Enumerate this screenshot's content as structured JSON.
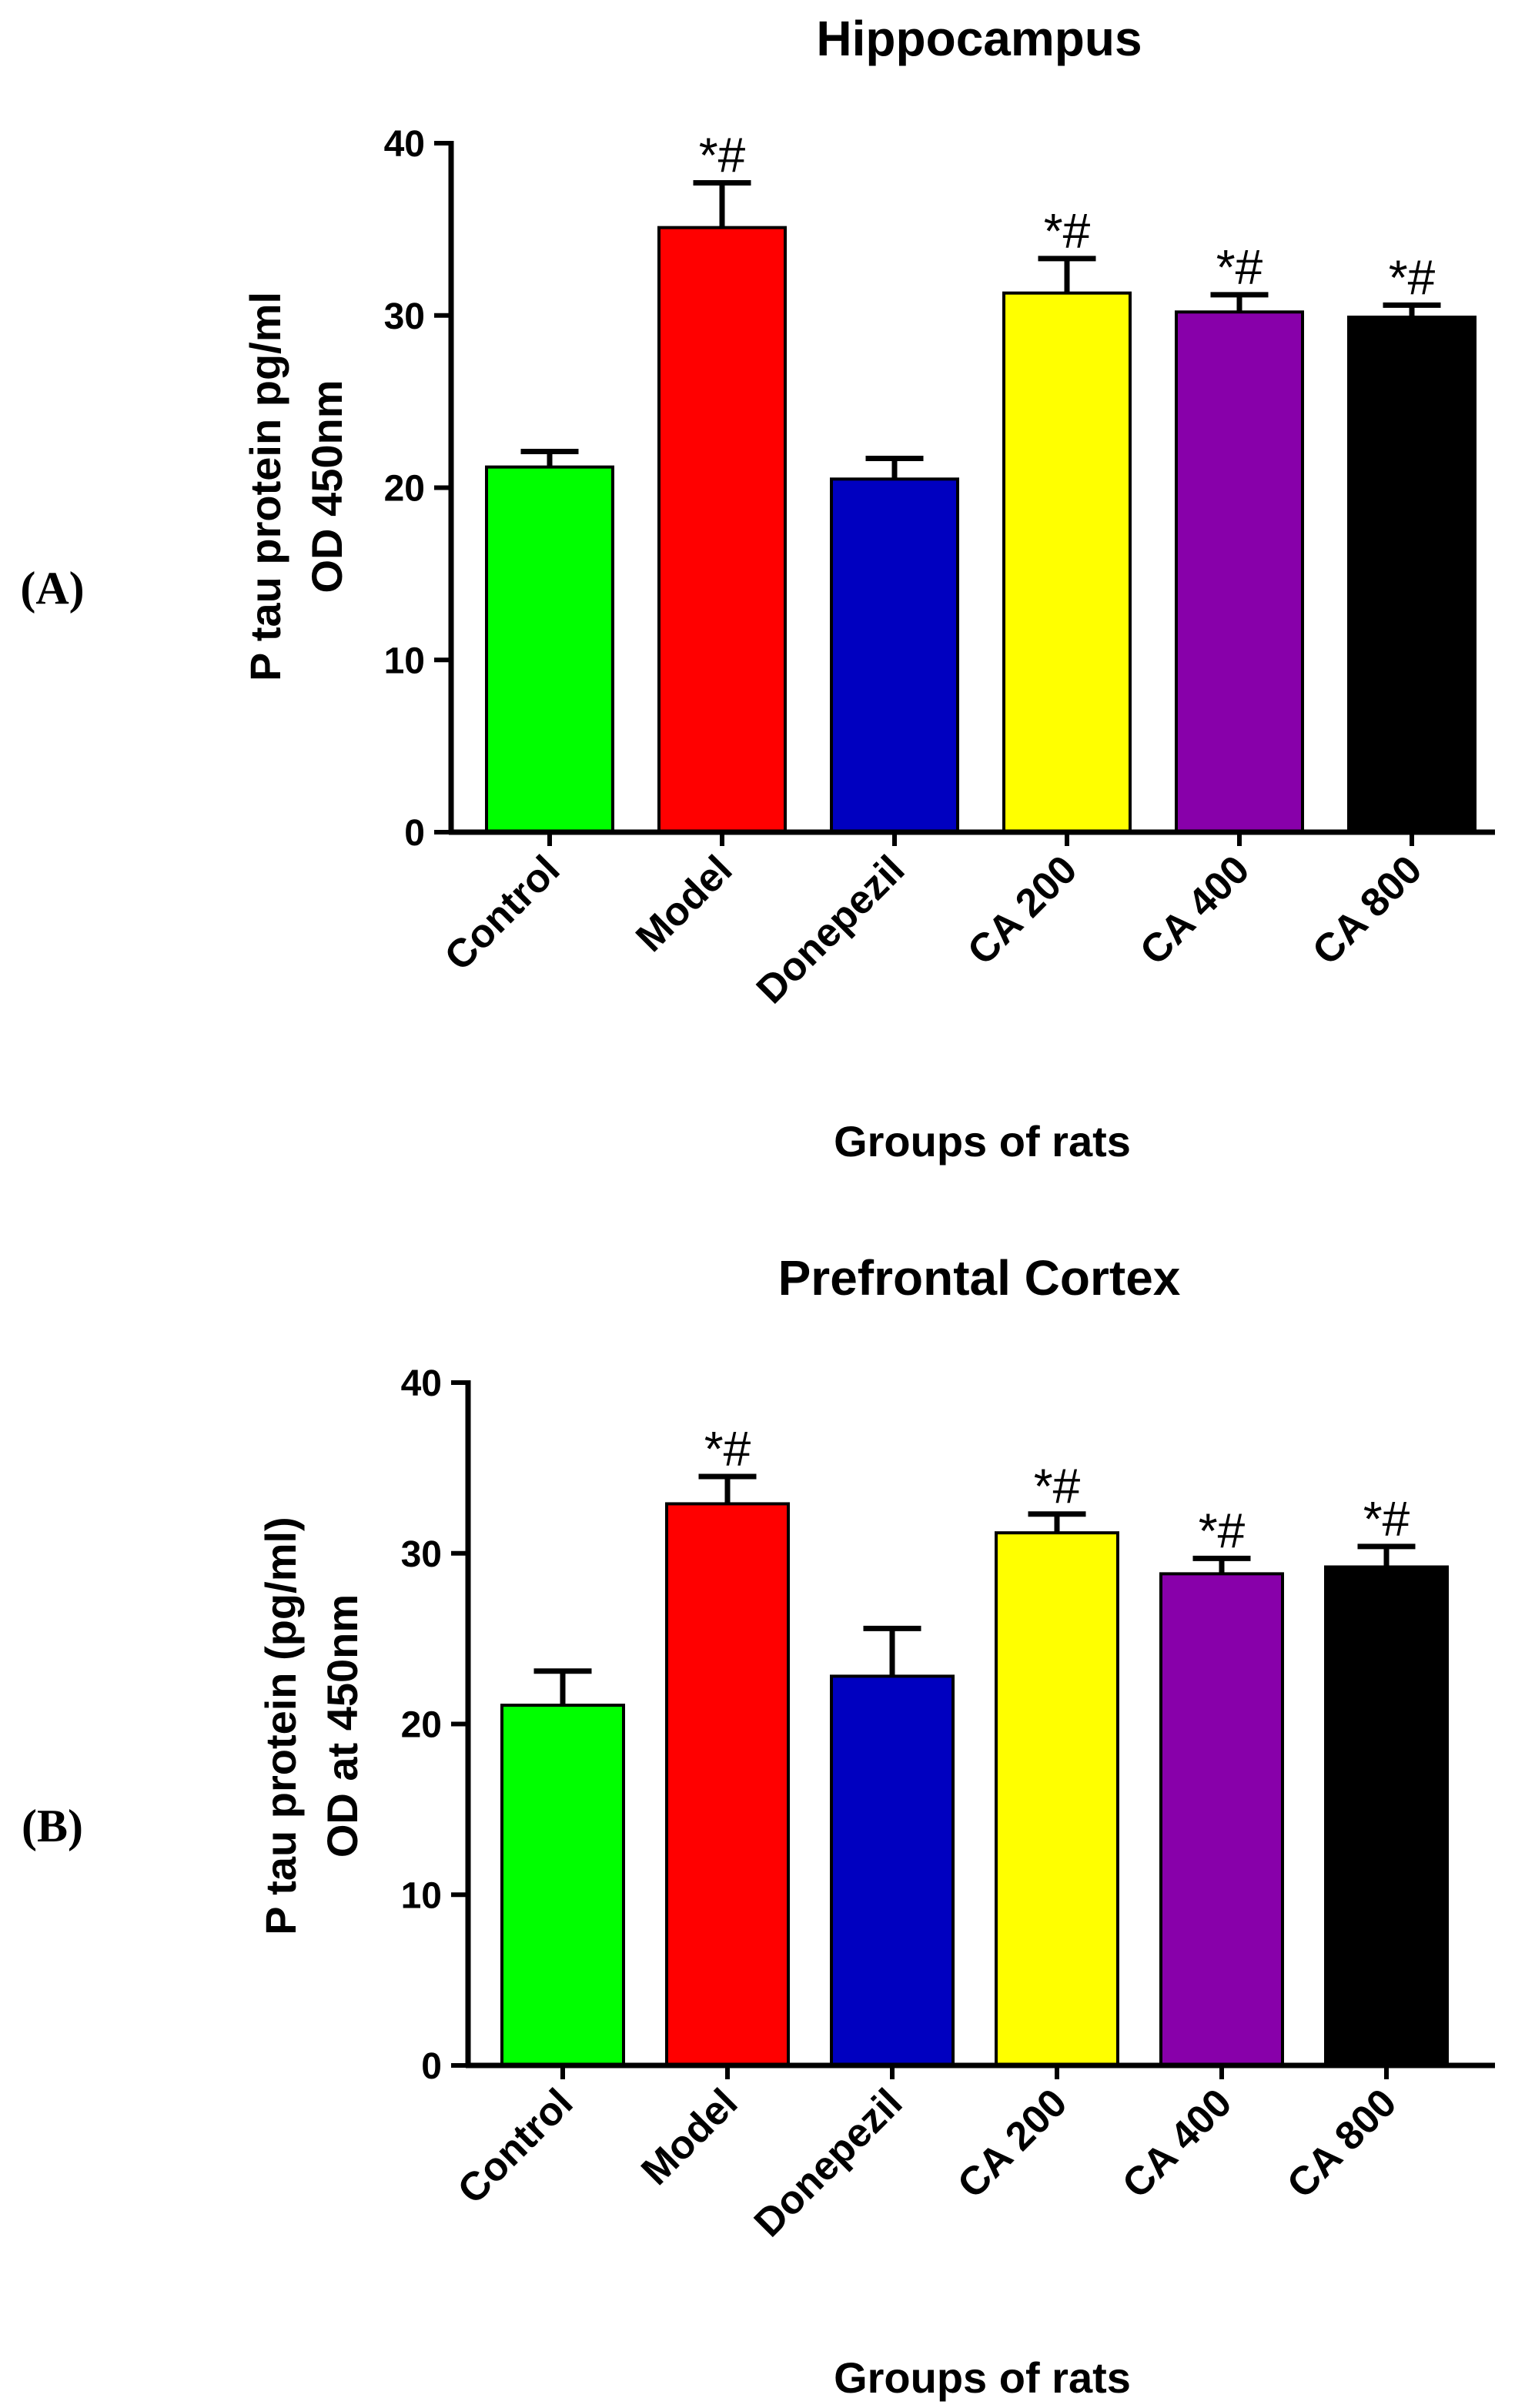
{
  "chart_data": [
    {
      "panel_label": "(A)",
      "type": "bar",
      "title": "Hippocampus",
      "xlabel": "Groups of rats",
      "ylabel_lines": [
        "P tau protein pg/ml",
        "OD 450nm"
      ],
      "ylim": [
        0,
        40
      ],
      "yticks": [
        0,
        10,
        20,
        30,
        40
      ],
      "categories": [
        "Control",
        "Model",
        "Donepezil",
        "CA 200",
        "CA 400",
        "CA 800"
      ],
      "values": [
        21.2,
        35.1,
        20.5,
        31.3,
        30.2,
        29.9
      ],
      "errors": [
        0.9,
        2.6,
        1.2,
        2.0,
        1.0,
        0.7
      ],
      "colors": [
        "#00ff00",
        "#ff0000",
        "#0000c0",
        "#ffff00",
        "#8800aa",
        "#000000"
      ],
      "annotations": [
        "",
        "*#",
        "",
        "*#",
        "*#",
        "*#"
      ]
    },
    {
      "panel_label": "(B)",
      "type": "bar",
      "title": "Prefrontal Cortex",
      "xlabel": "Groups of rats",
      "ylabel_lines": [
        "P tau protein (pg/ml)",
        "OD at 450nm"
      ],
      "ylim": [
        0,
        40
      ],
      "yticks": [
        0,
        10,
        20,
        30,
        40
      ],
      "categories": [
        "Control",
        "Model",
        "Donepezil",
        "CA 200",
        "CA 400",
        "CA 800"
      ],
      "values": [
        21.1,
        32.9,
        22.8,
        31.2,
        28.8,
        29.2
      ],
      "errors": [
        2.0,
        1.6,
        2.8,
        1.1,
        0.9,
        1.2
      ],
      "colors": [
        "#00ff00",
        "#ff0000",
        "#0000c0",
        "#ffff00",
        "#8800aa",
        "#000000"
      ],
      "annotations": [
        "",
        "*#",
        "",
        "*#",
        "*#",
        "*#"
      ]
    }
  ]
}
